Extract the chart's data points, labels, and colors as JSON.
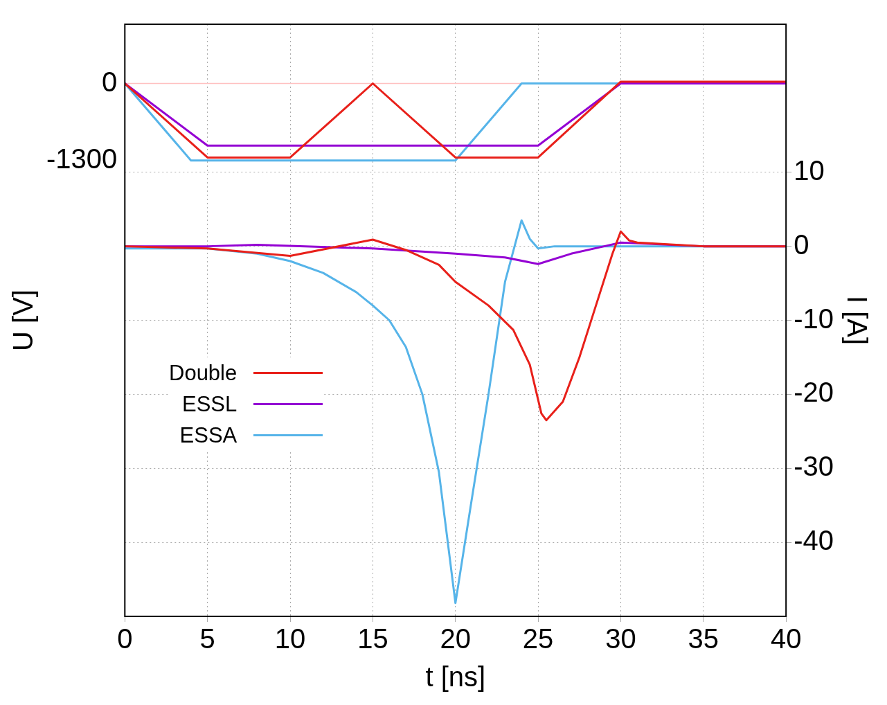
{
  "chart_data": {
    "type": "line",
    "xlabel": "t [ns]",
    "ylabel": "U [V]",
    "y2label": "I [A]",
    "xlim": [
      0,
      40
    ],
    "xticks": [
      0,
      5,
      10,
      15,
      20,
      25,
      30,
      35,
      40
    ],
    "ylim": [
      -9000,
      1000
    ],
    "yticks": [
      -1300,
      0
    ],
    "y2lim": [
      -50,
      30
    ],
    "y2ticks": [
      -40,
      -30,
      -20,
      -10,
      0,
      10
    ],
    "grid": true,
    "legend": "left",
    "marker": "none",
    "line_style": "solid",
    "ref_lines": [
      {
        "axis": "y",
        "value": 0,
        "color": "#ffc0c0"
      }
    ],
    "series": [
      {
        "color": "#e8201a",
        "axis": "y",
        "x": [
          0,
          5,
          10,
          15,
          20,
          25,
          30,
          40
        ],
        "values": [
          0,
          -1250,
          -1250,
          0,
          -1250,
          -1250,
          30,
          30
        ]
      },
      {
        "color": "#9400d3",
        "axis": "y",
        "x": [
          0,
          5,
          25,
          30,
          40
        ],
        "values": [
          0,
          -1050,
          -1050,
          0,
          0
        ]
      },
      {
        "color": "#56b4e9",
        "axis": "y",
        "x": [
          0,
          4,
          20,
          24,
          40
        ],
        "values": [
          0,
          -1300,
          -1300,
          0,
          0
        ]
      },
      {
        "name": "Double",
        "color": "#e8201a",
        "axis": "y2",
        "x": [
          0,
          5,
          10,
          15,
          17,
          19,
          20,
          22,
          23.5,
          24.5,
          25.2,
          25.5,
          26.5,
          27.5,
          28.5,
          29.5,
          30,
          30.5,
          31,
          35,
          40
        ],
        "values": [
          0,
          -0.3,
          -1.3,
          0.9,
          -0.5,
          -2.5,
          -4.8,
          -8,
          -11.3,
          -16,
          -22.6,
          -23.5,
          -21,
          -15,
          -8,
          -1,
          2,
          0.8,
          0.5,
          0,
          0
        ]
      },
      {
        "name": "ESSL",
        "color": "#9400d3",
        "axis": "y2",
        "x": [
          0,
          5,
          8,
          15,
          20,
          23,
          25,
          27,
          29,
          30,
          35,
          40
        ],
        "values": [
          0,
          0,
          0.2,
          -0.3,
          -1,
          -1.5,
          -2.4,
          -1,
          0,
          0.5,
          0,
          0
        ]
      },
      {
        "name": "ESSA",
        "color": "#56b4e9",
        "axis": "y2",
        "x": [
          0,
          5,
          8,
          10,
          12,
          14,
          15,
          16,
          17,
          18,
          19,
          20,
          21,
          22,
          23,
          24,
          24.5,
          25,
          26,
          40
        ],
        "values": [
          -0.3,
          -0.3,
          -1,
          -2,
          -3.6,
          -6.2,
          -8,
          -10,
          -13.6,
          -20,
          -30.5,
          -48.2,
          -34,
          -20,
          -4.8,
          3.5,
          1,
          -0.3,
          0,
          0
        ]
      }
    ]
  }
}
